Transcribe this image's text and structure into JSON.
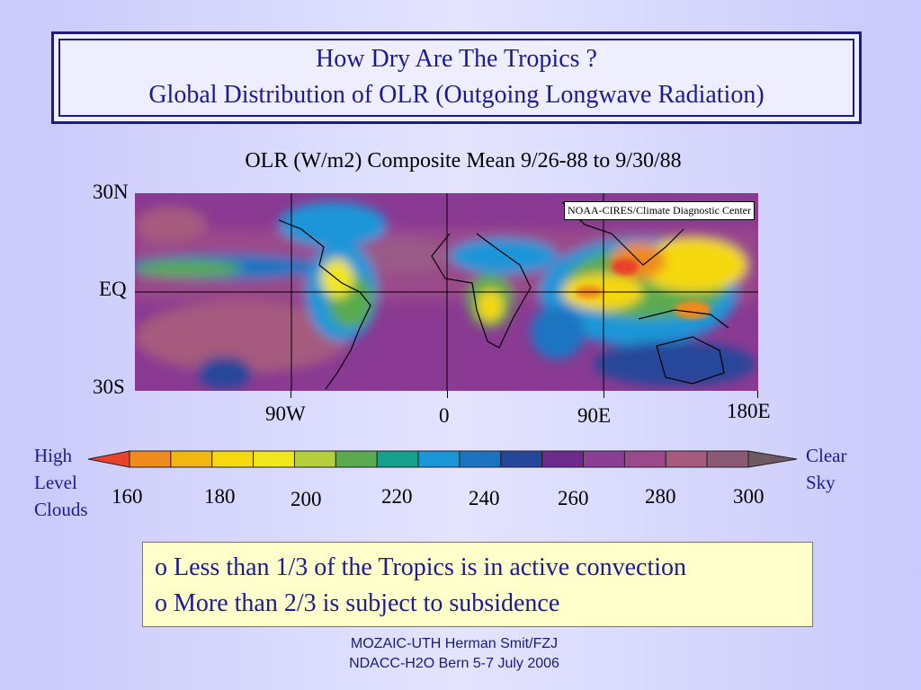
{
  "header": {
    "title_line1": "How Dry Are The Tropics ?",
    "title_line2": "Global Distribution  of OLR  (Outgoing Longwave Radiation)"
  },
  "map": {
    "title": "OLR (W/m2) Composite Mean 9/26-88 to 9/30/88",
    "credit": "NOAA-CIRES/Climate Diagnostic Center",
    "lat_labels": [
      "30N",
      "EQ",
      "30S"
    ],
    "lon_labels": [
      "90W",
      "0",
      "90E",
      "180E"
    ]
  },
  "colorbar": {
    "left_label": "High Level Clouds",
    "right_label": "Clear Sky",
    "tick_labels": [
      "160",
      "180",
      "200",
      "220",
      "240",
      "260",
      "280",
      "300"
    ],
    "colors": [
      "#e8432a",
      "#ee8a1e",
      "#f2b611",
      "#f5d80d",
      "#f1e61a",
      "#b5cf3c",
      "#5aaa4f",
      "#15a08e",
      "#1a96d8",
      "#1a74c2",
      "#25469a",
      "#6c2a8c",
      "#8c3d96",
      "#9a4a8a",
      "#a55a7e",
      "#8a5a74",
      "#6f5a62"
    ]
  },
  "bullets": [
    "o Less than 1/3 of the Tropics is in active convection",
    "o More than 2/3 is subject to subsidence"
  ],
  "footer": {
    "line1": "MOZAIC-UTH  Herman Smit/FZJ",
    "line2": "NDACC-H2O Bern 5-7 July 2006"
  }
}
